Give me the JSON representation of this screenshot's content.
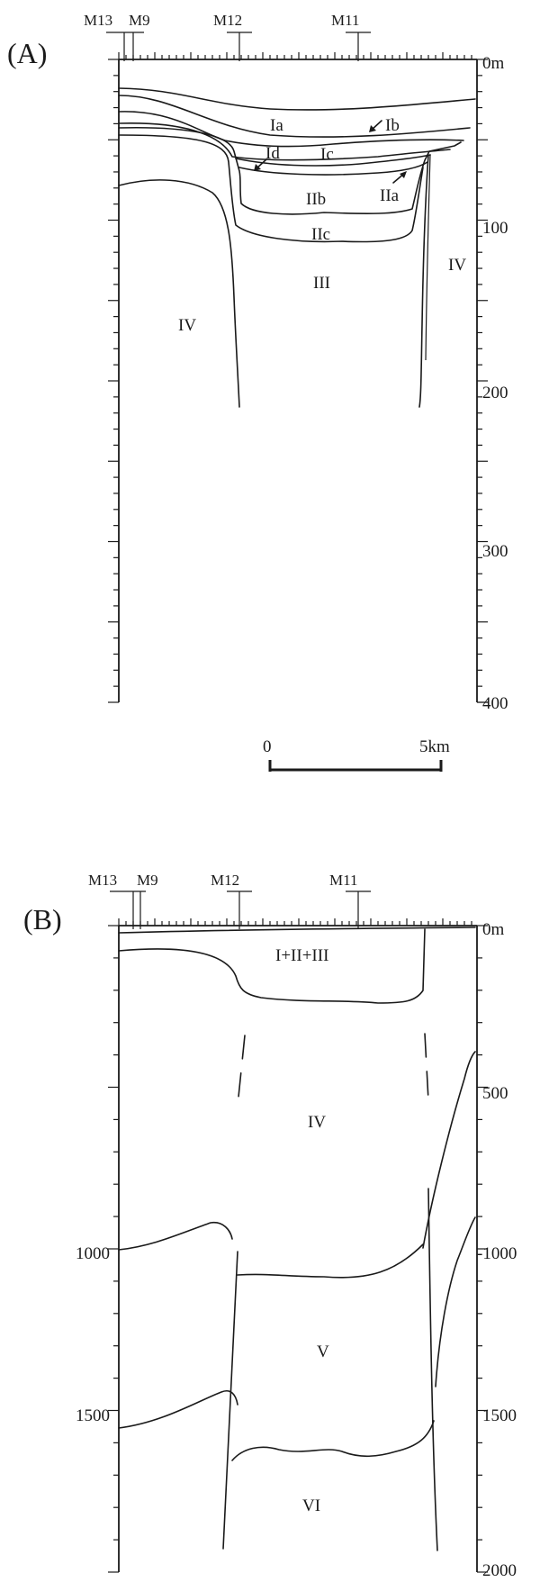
{
  "panel_a": {
    "label": "(A)",
    "wells": [
      "M13",
      "M9",
      "M12",
      "M11"
    ],
    "depth_ticks": [
      "0m",
      "100",
      "200",
      "300",
      "400"
    ],
    "units": [
      "Ia",
      "Ib",
      "Ic",
      "Id",
      "IIa",
      "IIb",
      "IIc",
      "III",
      "IV",
      "IV"
    ]
  },
  "scale_bar": {
    "start": "0",
    "end": "5km"
  },
  "panel_b": {
    "label": "(B)",
    "wells": [
      "M13",
      "M9",
      "M12",
      "M11"
    ],
    "depth_ticks_right": [
      "0m",
      "500",
      "-1000",
      "1500",
      "2000"
    ],
    "depth_ticks_left": [
      "1000",
      "1500"
    ],
    "units": [
      "I+II+III",
      "IV",
      "V",
      "VI"
    ]
  }
}
